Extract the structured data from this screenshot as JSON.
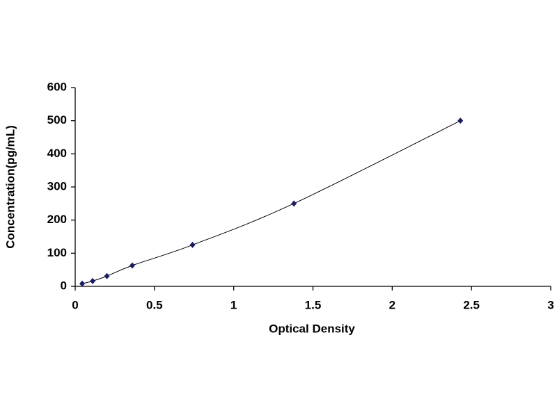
{
  "chart_data": {
    "type": "scatter",
    "x_label": "Optical Density",
    "y_label": "Concentration(pg/mL)",
    "series": [
      {
        "color": "#1c1c64",
        "x": [
          0.044,
          0.11,
          0.2,
          0.36,
          0.74,
          1.38,
          2.43
        ],
        "values": [
          8,
          16,
          31,
          63,
          125,
          250,
          500
        ]
      }
    ],
    "trend_line": true,
    "xlim": [
      0,
      3
    ],
    "xticks": [
      0,
      0.5,
      1,
      1.5,
      2,
      2.5,
      3
    ],
    "ylim": [
      0,
      600
    ],
    "yticks": [
      0,
      100,
      200,
      300,
      400,
      500,
      600
    ],
    "grid": false
  }
}
